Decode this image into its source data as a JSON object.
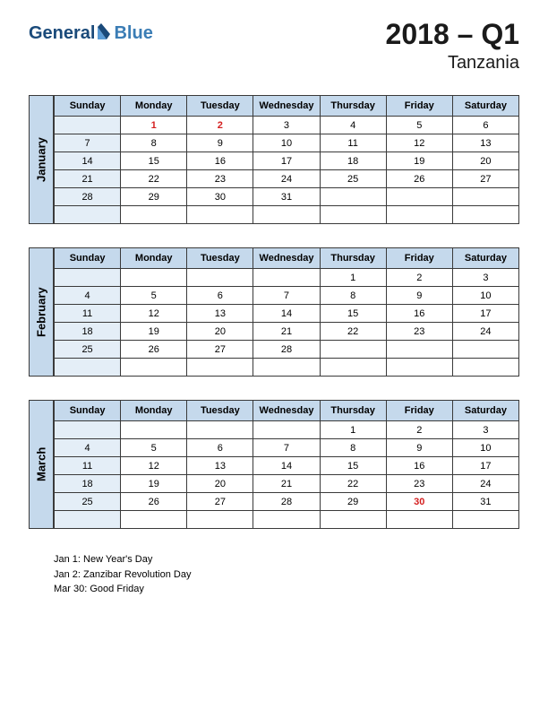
{
  "logo": {
    "part1": "General",
    "part2": "Blue"
  },
  "title": {
    "year_quarter": "2018 – Q1",
    "country": "Tanzania"
  },
  "days": [
    "Sunday",
    "Monday",
    "Tuesday",
    "Wednesday",
    "Thursday",
    "Friday",
    "Saturday"
  ],
  "months": [
    {
      "name": "January",
      "weeks": [
        [
          "",
          "1",
          "2",
          "3",
          "4",
          "5",
          "6"
        ],
        [
          "7",
          "8",
          "9",
          "10",
          "11",
          "12",
          "13"
        ],
        [
          "14",
          "15",
          "16",
          "17",
          "18",
          "19",
          "20"
        ],
        [
          "21",
          "22",
          "23",
          "24",
          "25",
          "26",
          "27"
        ],
        [
          "28",
          "29",
          "30",
          "31",
          "",
          "",
          ""
        ],
        [
          "",
          "",
          "",
          "",
          "",
          "",
          ""
        ]
      ],
      "holidays_cells": [
        [
          0,
          1
        ],
        [
          0,
          2
        ]
      ]
    },
    {
      "name": "February",
      "weeks": [
        [
          "",
          "",
          "",
          "",
          "1",
          "2",
          "3"
        ],
        [
          "4",
          "5",
          "6",
          "7",
          "8",
          "9",
          "10"
        ],
        [
          "11",
          "12",
          "13",
          "14",
          "15",
          "16",
          "17"
        ],
        [
          "18",
          "19",
          "20",
          "21",
          "22",
          "23",
          "24"
        ],
        [
          "25",
          "26",
          "27",
          "28",
          "",
          "",
          ""
        ],
        [
          "",
          "",
          "",
          "",
          "",
          "",
          ""
        ]
      ],
      "holidays_cells": []
    },
    {
      "name": "March",
      "weeks": [
        [
          "",
          "",
          "",
          "",
          "1",
          "2",
          "3"
        ],
        [
          "4",
          "5",
          "6",
          "7",
          "8",
          "9",
          "10"
        ],
        [
          "11",
          "12",
          "13",
          "14",
          "15",
          "16",
          "17"
        ],
        [
          "18",
          "19",
          "20",
          "21",
          "22",
          "23",
          "24"
        ],
        [
          "25",
          "26",
          "27",
          "28",
          "29",
          "30",
          "31"
        ],
        [
          "",
          "",
          "",
          "",
          "",
          "",
          ""
        ]
      ],
      "holidays_cells": [
        [
          4,
          5
        ]
      ]
    }
  ],
  "holiday_list": [
    "Jan 1: New Year's Day",
    "Jan 2: Zanzibar Revolution Day",
    "Mar 30: Good Friday"
  ],
  "colors": {
    "header_bg": "#c5d9ec",
    "sunday_bg": "#e4eef7",
    "border": "#3a3a3a",
    "holiday_text": "#d42020"
  }
}
